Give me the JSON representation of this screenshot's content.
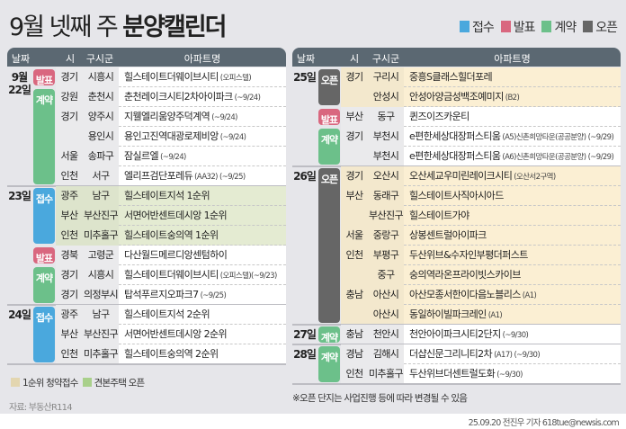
{
  "title": {
    "normal": "9월 넷째 주 ",
    "bold": "분양캘린더"
  },
  "legend": [
    {
      "label": "접수",
      "color": "#4aa8dd"
    },
    {
      "label": "발표",
      "color": "#d9677f"
    },
    {
      "label": "계약",
      "color": "#6cc08a"
    },
    {
      "label": "오픈",
      "color": "#666666"
    }
  ],
  "header": {
    "date": "날짜",
    "si": "시",
    "gu": "구시군",
    "name": "아파트명"
  },
  "colors": {
    "first_priority_bg": "#e4ebd2",
    "model_house_bg": "#fbefd3",
    "header_bg": "#5b6872"
  },
  "left": [
    {
      "date": "9월\n22일",
      "blocks": [
        {
          "badge": "발표",
          "bg": "white",
          "rows": [
            {
              "si": "경기",
              "gu": "시흥시",
              "name": "힐스테이트더웨이브시티",
              "note": "(오피스텔)"
            }
          ]
        },
        {
          "badge": "계약",
          "bg": "white",
          "rows": [
            {
              "si": "강원",
              "gu": "춘천시",
              "name": "춘천레이크시티2차아이파크",
              "note": "(~9/24)"
            },
            {
              "si": "경기",
              "gu": "양주시",
              "name": "지웰엘리움양주덕계역",
              "note": "(~9/24)"
            },
            {
              "si": "",
              "gu": "용인시",
              "name": "용인고진역대광로제비앙",
              "note": "(~9/24)"
            },
            {
              "si": "서울",
              "gu": "송파구",
              "name": "잠실르엘",
              "note": "(~9/24)"
            },
            {
              "si": "인천",
              "gu": "서구",
              "name": "엘리프검단포레듀",
              "note": "(AA32) (~9/25)"
            }
          ]
        }
      ]
    },
    {
      "date": "23일",
      "blocks": [
        {
          "badge": "접수",
          "bg": "green",
          "rows": [
            {
              "si": "광주",
              "gu": "남구",
              "name": "힐스테이트지석 1순위",
              "note": ""
            },
            {
              "si": "부산",
              "gu": "부산진구",
              "name": "서면어반센트데시앙 1순위",
              "note": ""
            },
            {
              "si": "인천",
              "gu": "미추홀구",
              "name": "힐스테이트숭의역 1순위",
              "note": ""
            }
          ]
        },
        {
          "badge": "발표",
          "bg": "white",
          "rows": [
            {
              "si": "경북",
              "gu": "고령군",
              "name": "다산월드메르디앙센텀하이",
              "note": ""
            }
          ]
        },
        {
          "badge": "계약",
          "bg": "white",
          "rows": [
            {
              "si": "경기",
              "gu": "시흥시",
              "name": "힐스테이트더웨이브시티",
              "note": "(오피스텔)(~9/23)"
            },
            {
              "si": "경기",
              "gu": "의정부시",
              "name": "탑석푸르지오파크7",
              "note": "(~9/25)"
            }
          ]
        }
      ]
    },
    {
      "date": "24일",
      "blocks": [
        {
          "badge": "접수",
          "bg": "white",
          "rows": [
            {
              "si": "광주",
              "gu": "남구",
              "name": "힐스테이트지석 2순위",
              "note": ""
            },
            {
              "si": "부산",
              "gu": "부산진구",
              "name": "서면어반센트데시앙 2순위",
              "note": ""
            },
            {
              "si": "인천",
              "gu": "미추홀구",
              "name": "힐스테이트숭의역 2순위",
              "note": ""
            }
          ]
        }
      ]
    }
  ],
  "right": [
    {
      "date": "25일",
      "blocks": [
        {
          "badge": "오픈",
          "bg": "yellow",
          "rows": [
            {
              "si": "경기",
              "gu": "구리시",
              "name": "중흥S클래스힐더포레",
              "note": ""
            },
            {
              "si": "",
              "gu": "안성시",
              "name": "안성아양금성백조예미지",
              "note": "(B2)"
            }
          ]
        },
        {
          "badge": "발표",
          "bg": "white",
          "rows": [
            {
              "si": "부산",
              "gu": "동구",
              "name": "퀸즈이즈카운티",
              "note": ""
            }
          ]
        },
        {
          "badge": "계약",
          "bg": "white",
          "rows": [
            {
              "si": "경기",
              "gu": "부천시",
              "name": "e편한세상대장퍼스티움",
              "note": "(A5)신촌희망타운(공공분양) (~9/29)"
            },
            {
              "si": "",
              "gu": "부천시",
              "name": "e편한세상대장퍼스티움",
              "note": "(A6)신촌희망타운(공공분양) (~9/29)"
            }
          ]
        }
      ]
    },
    {
      "date": "26일",
      "blocks": [
        {
          "badge": "오픈",
          "bg": "yellow",
          "rows": [
            {
              "si": "경기",
              "gu": "오산시",
              "name": "오산세교우미린레이크시티",
              "note": "(오산서2구역)"
            },
            {
              "si": "부산",
              "gu": "동래구",
              "name": "힐스테이트사직아시아드",
              "note": ""
            },
            {
              "si": "",
              "gu": "부산진구",
              "name": "힐스테이트가야",
              "note": ""
            },
            {
              "si": "서울",
              "gu": "중랑구",
              "name": "상봉센트럴아이파크",
              "note": ""
            },
            {
              "si": "인천",
              "gu": "부평구",
              "name": "두산위브&수자인부평더퍼스트",
              "note": ""
            },
            {
              "si": "",
              "gu": "중구",
              "name": "숭의역라온프라이빗스카이브",
              "note": ""
            },
            {
              "si": "충남",
              "gu": "아산시",
              "name": "아산모종서한이다음노블리스",
              "note": "(A1)"
            },
            {
              "si": "",
              "gu": "아산시",
              "name": "동일하이빌파크레인",
              "note": "(A1)"
            }
          ]
        }
      ]
    },
    {
      "date": "27일",
      "blocks": [
        {
          "badge": "계약",
          "bg": "white",
          "rows": [
            {
              "si": "충남",
              "gu": "천안시",
              "name": "천안아이파크시티2단지",
              "note": "(~9/30)"
            }
          ]
        }
      ]
    },
    {
      "date": "28일",
      "blocks": [
        {
          "badge": "계약",
          "bg": "white",
          "rows": [
            {
              "si": "경남",
              "gu": "김해시",
              "name": "더샵신문그리니티2차",
              "note": "(A17) (~9/30)"
            },
            {
              "si": "인천",
              "gu": "미추홀구",
              "name": "두산위브더센트럴도화",
              "note": "(~9/30)"
            }
          ]
        }
      ]
    }
  ],
  "footer": {
    "legend1": "1순위 청약접수",
    "legend2": "견본주택 오픈",
    "source": "자료: 부동산R114",
    "note": "※오픈 단지는 사업진행 등에 따라 변경될 수 있음",
    "credit": "25.09.20 전진우 기자 618tue@newsis.com"
  }
}
